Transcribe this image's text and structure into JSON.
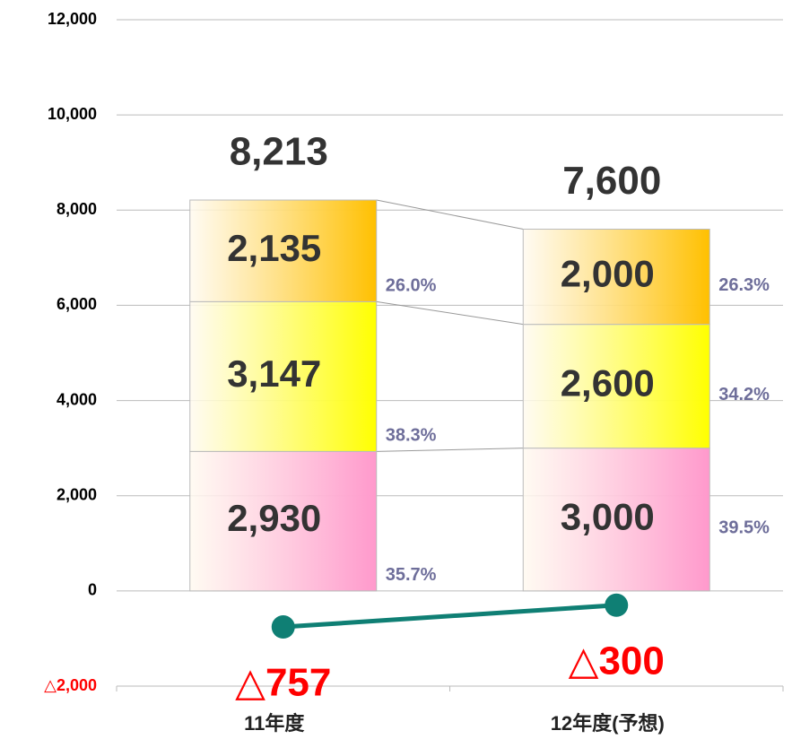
{
  "chart_data": {
    "type": "stacked_bar_line",
    "categories": [
      "11年度",
      "12年度(予想)"
    ],
    "ylim": [
      -2000,
      12000
    ],
    "yticks": [
      {
        "value": -2000,
        "label": "△2,000"
      },
      0,
      {
        "value": 2000,
        "label": "2,000"
      },
      {
        "value": 4000,
        "label": "4,000"
      },
      {
        "value": 6000,
        "label": "6,000"
      },
      {
        "value": 8000,
        "label": "8,000"
      },
      {
        "value": 10000,
        "label": "10,000"
      },
      {
        "value": 12000,
        "label": "12,000"
      }
    ],
    "grid": true,
    "series": [
      {
        "color": "#ff99cc",
        "values": [
          2930,
          3000
        ],
        "value_labels": [
          "2,930",
          "3,000"
        ],
        "percent_values": [
          35.7,
          39.5
        ],
        "percent_labels": [
          "35.7%",
          "39.5%"
        ]
      },
      {
        "color": "#ffff00",
        "values": [
          3147,
          2600
        ],
        "value_labels": [
          "3,147",
          "2,600"
        ],
        "percent_values": [
          38.3,
          34.2
        ],
        "percent_labels": [
          "38.3%",
          "34.2%"
        ]
      },
      {
        "color": "#ffc000",
        "values": [
          2135,
          2000
        ],
        "value_labels": [
          "2,135",
          "2,000"
        ],
        "percent_values": [
          26.0,
          26.3
        ],
        "percent_labels": [
          "26.0%",
          "26.3%"
        ]
      }
    ],
    "totals": [
      8213,
      7600
    ],
    "total_labels": [
      "8,213",
      "7,600"
    ],
    "line": {
      "color": "#0f7f74",
      "values": [
        -757,
        -300
      ],
      "value_labels": [
        "△757",
        "△300"
      ],
      "label_color": "#ff0000"
    }
  }
}
